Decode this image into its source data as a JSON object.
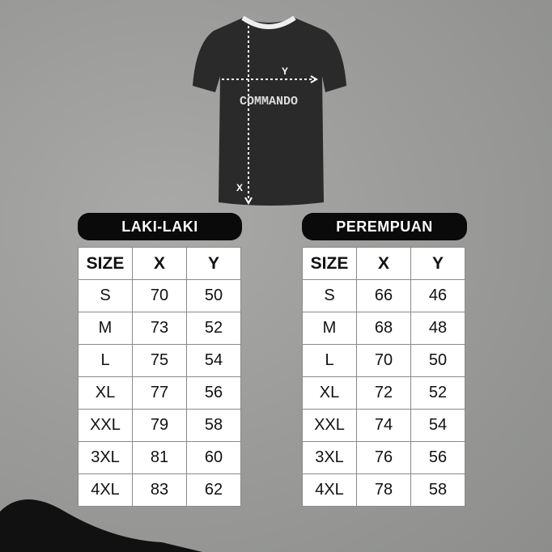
{
  "shirt": {
    "brand_text": "COMMANDO",
    "x_label": "X",
    "y_label": "Y"
  },
  "men": {
    "title": "LAKI-LAKI",
    "headers": [
      "SIZE",
      "X",
      "Y"
    ],
    "rows": [
      [
        "S",
        "70",
        "50"
      ],
      [
        "M",
        "73",
        "52"
      ],
      [
        "L",
        "75",
        "54"
      ],
      [
        "XL",
        "77",
        "56"
      ],
      [
        "XXL",
        "79",
        "58"
      ],
      [
        "3XL",
        "81",
        "60"
      ],
      [
        "4XL",
        "83",
        "62"
      ]
    ]
  },
  "women": {
    "title": "PEREMPUAN",
    "headers": [
      "SIZE",
      "X",
      "Y"
    ],
    "rows": [
      [
        "S",
        "66",
        "46"
      ],
      [
        "M",
        "68",
        "48"
      ],
      [
        "L",
        "70",
        "50"
      ],
      [
        "XL",
        "72",
        "52"
      ],
      [
        "XXL",
        "74",
        "54"
      ],
      [
        "3XL",
        "76",
        "56"
      ],
      [
        "4XL",
        "78",
        "58"
      ]
    ]
  }
}
